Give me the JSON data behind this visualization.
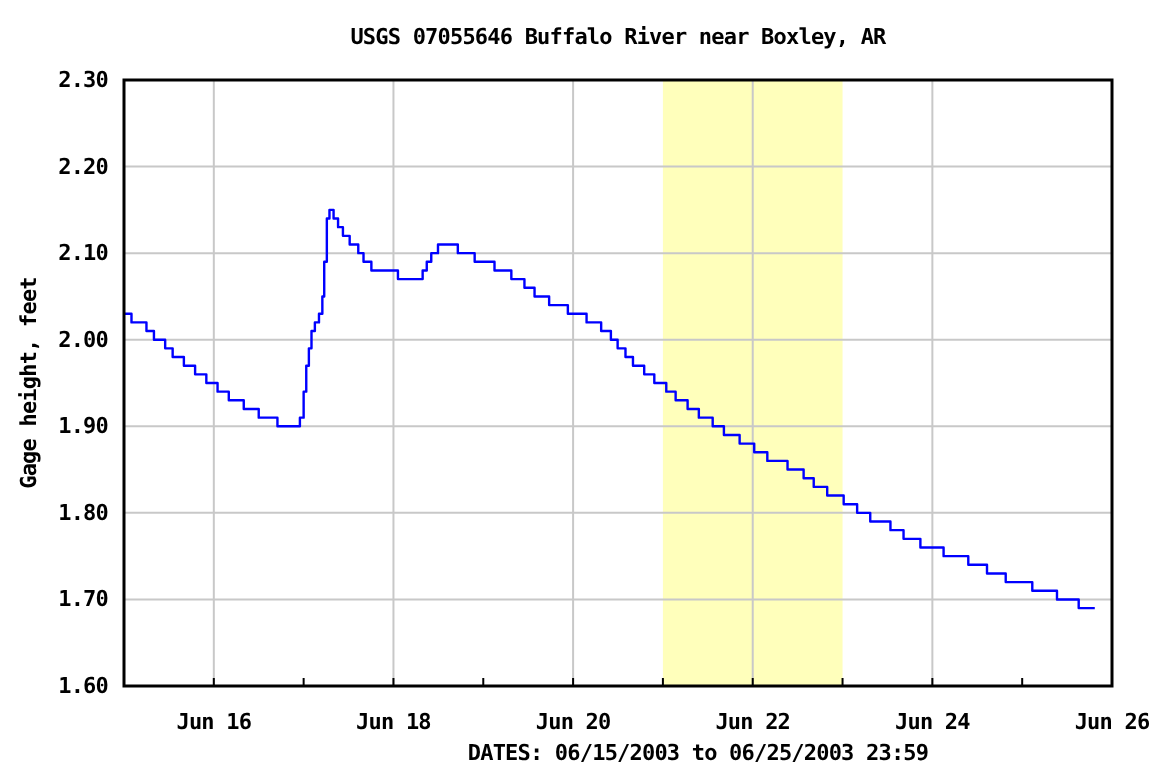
{
  "chart_data": {
    "type": "step",
    "title": "USGS 07055646 Buffalo River near Boxley, AR",
    "xlabel": "DATES: 06/15/2003 to 06/25/2003 23:59",
    "ylabel": "Gage height, feet",
    "xlim": [
      "2003-06-15",
      "2003-06-26"
    ],
    "xticks": [
      {
        "value": "2003-06-16",
        "label": "Jun 16"
      },
      {
        "value": "2003-06-17",
        "label": null
      },
      {
        "value": "2003-06-18",
        "label": "Jun 18"
      },
      {
        "value": "2003-06-19",
        "label": null
      },
      {
        "value": "2003-06-20",
        "label": "Jun 20"
      },
      {
        "value": "2003-06-21",
        "label": null
      },
      {
        "value": "2003-06-22",
        "label": "Jun 22"
      },
      {
        "value": "2003-06-23",
        "label": null
      },
      {
        "value": "2003-06-24",
        "label": "Jun 24"
      },
      {
        "value": "2003-06-25",
        "label": null
      },
      {
        "value": "2003-06-26",
        "label": "Jun 26"
      }
    ],
    "ylim": [
      1.6,
      2.3
    ],
    "yticks": [
      {
        "value": 1.6,
        "label": "1.60"
      },
      {
        "value": 1.7,
        "label": "1.70"
      },
      {
        "value": 1.8,
        "label": "1.80"
      },
      {
        "value": 1.9,
        "label": "1.90"
      },
      {
        "value": 2.0,
        "label": "2.00"
      },
      {
        "value": 2.1,
        "label": "2.10"
      },
      {
        "value": 2.2,
        "label": "2.20"
      },
      {
        "value": 2.3,
        "label": "2.30"
      }
    ],
    "grid": true,
    "bands": [
      {
        "axis": "x",
        "from": "2003-06-21",
        "to": "2003-06-23",
        "color": "#ffffbb"
      }
    ],
    "x": [
      "2003-06-15T00:00",
      "2003-06-15T02:00",
      "2003-06-15T06:00",
      "2003-06-15T08:00",
      "2003-06-15T11:00",
      "2003-06-15T13:00",
      "2003-06-15T16:00",
      "2003-06-15T19:00",
      "2003-06-15T22:00",
      "2003-06-16T01:00",
      "2003-06-16T04:00",
      "2003-06-16T08:00",
      "2003-06-16T12:00",
      "2003-06-16T17:00",
      "2003-06-16T23:00",
      "2003-06-17T00:00",
      "2003-06-17T00:42",
      "2003-06-17T01:24",
      "2003-06-17T02:06",
      "2003-06-17T03:00",
      "2003-06-17T04:06",
      "2003-06-17T05:00",
      "2003-06-17T05:30",
      "2003-06-17T06:12",
      "2003-06-17T06:54",
      "2003-06-17T08:00",
      "2003-06-17T09:12",
      "2003-06-17T10:30",
      "2003-06-17T12:18",
      "2003-06-17T14:36",
      "2003-06-17T16:00",
      "2003-06-17T18:06",
      "2003-06-18T01:12",
      "2003-06-18T07:48",
      "2003-06-18T08:54",
      "2003-06-18T10:06",
      "2003-06-18T11:54",
      "2003-06-18T17:12",
      "2003-06-18T21:42",
      "2003-06-19T03:00",
      "2003-06-19T07:30",
      "2003-06-19T11:00",
      "2003-06-19T13:42",
      "2003-06-19T17:36",
      "2003-06-19T22:36",
      "2003-06-20T03:36",
      "2003-06-20T07:30",
      "2003-06-20T10:06",
      "2003-06-20T11:54",
      "2003-06-20T14:00",
      "2003-06-20T16:00",
      "2003-06-20T19:00",
      "2003-06-20T21:42",
      "2003-06-21T00:54",
      "2003-06-21T03:24",
      "2003-06-21T06:36",
      "2003-06-21T09:36",
      "2003-06-21T13:18",
      "2003-06-21T16:18",
      "2003-06-21T20:30",
      "2003-06-22T00:24",
      "2003-06-22T03:54",
      "2003-06-22T09:18",
      "2003-06-22T13:36",
      "2003-06-22T16:18",
      "2003-06-22T19:54",
      "2003-06-23T00:18",
      "2003-06-23T03:54",
      "2003-06-23T07:24",
      "2003-06-23T12:48",
      "2003-06-23T16:18",
      "2003-06-23T20:48",
      "2003-06-24T03:00",
      "2003-06-24T09:36",
      "2003-06-24T14:36",
      "2003-06-24T19:36",
      "2003-06-25T02:42",
      "2003-06-25T09:18",
      "2003-06-25T15:06",
      "2003-06-25T19:24"
    ],
    "series": [
      {
        "color": "#0000ff",
        "values": [
          2.03,
          2.02,
          2.01,
          2.0,
          1.99,
          1.98,
          1.97,
          1.96,
          1.95,
          1.94,
          1.93,
          1.92,
          1.91,
          1.9,
          1.91,
          1.94,
          1.97,
          1.99,
          2.01,
          2.02,
          2.03,
          2.05,
          2.09,
          2.14,
          2.15,
          2.14,
          2.13,
          2.12,
          2.11,
          2.1,
          2.09,
          2.08,
          2.07,
          2.08,
          2.09,
          2.1,
          2.11,
          2.1,
          2.09,
          2.08,
          2.07,
          2.06,
          2.05,
          2.04,
          2.03,
          2.02,
          2.01,
          2.0,
          1.99,
          1.98,
          1.97,
          1.96,
          1.95,
          1.94,
          1.93,
          1.92,
          1.91,
          1.9,
          1.89,
          1.88,
          1.87,
          1.86,
          1.85,
          1.84,
          1.83,
          1.82,
          1.81,
          1.8,
          1.79,
          1.78,
          1.77,
          1.76,
          1.75,
          1.74,
          1.73,
          1.72,
          1.71,
          1.7,
          1.69,
          1.69
        ]
      }
    ]
  }
}
